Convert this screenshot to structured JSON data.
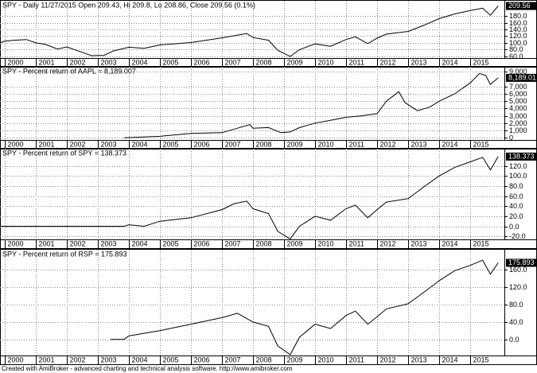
{
  "chart_data": [
    {
      "type": "line",
      "title": "SPY - Daily 11/27/2015 Open 209.43, Hi 209.8, Lo 208.86, Close 209.56 (0.1%)",
      "color": "#000000",
      "x": [
        1999.85,
        2000,
        2000.3,
        2000.7,
        2001,
        2001.3,
        2001.7,
        2002,
        2002.5,
        2002.8,
        2003.2,
        2003.5,
        2004,
        2004.5,
        2005,
        2006,
        2007,
        2007.8,
        2008,
        2008.5,
        2008.8,
        2009.2,
        2009.5,
        2010,
        2010.5,
        2011,
        2011.3,
        2011.7,
        2012,
        2012.3,
        2013,
        2013.5,
        2014,
        2014.5,
        2015,
        2015.4,
        2015.65,
        2015.9
      ],
      "values": [
        100,
        105,
        108,
        110,
        100,
        96,
        82,
        88,
        72,
        62,
        63,
        76,
        87,
        84,
        94,
        101,
        115,
        128,
        116,
        108,
        78,
        60,
        80,
        97,
        90,
        110,
        118,
        98,
        114,
        126,
        134,
        152,
        172,
        186,
        196,
        203,
        182,
        209.56
      ],
      "xlim": [
        1999.85,
        2016.1
      ],
      "xticks": [
        2000,
        2001,
        2002,
        2003,
        2004,
        2005,
        2006,
        2007,
        2008,
        2009,
        2010,
        2011,
        2012,
        2013,
        2014,
        2015
      ],
      "ylim": [
        55,
        225
      ],
      "yticks": [
        {
          "value": 180,
          "label": "180.0"
        },
        {
          "value": 160,
          "label": "160.0"
        },
        {
          "value": 140,
          "label": "140.0"
        },
        {
          "value": 120,
          "label": "120.0"
        },
        {
          "value": 100,
          "label": "100.0"
        },
        {
          "value": 80,
          "label": "80.0"
        },
        {
          "value": 60,
          "label": "60.0"
        }
      ],
      "grid": true
    },
    {
      "type": "line",
      "title": "SPY -  Percent return of AAPL = 8,189.007",
      "color": "#000000",
      "x": [
        2003.85,
        2004,
        2005,
        2006,
        2007,
        2007.9,
        2008,
        2008.5,
        2008.9,
        2009.2,
        2009.5,
        2010,
        2010.5,
        2011,
        2011.5,
        2012,
        2012.3,
        2012.7,
        2012.9,
        2013.3,
        2013.7,
        2014,
        2014.5,
        2015,
        2015.3,
        2015.5,
        2015.65,
        2015.9
      ],
      "values": [
        0,
        30,
        200,
        600,
        700,
        1800,
        1300,
        1400,
        700,
        800,
        1400,
        2000,
        2400,
        2800,
        3000,
        3300,
        5000,
        6300,
        4800,
        3700,
        4200,
        5000,
        6000,
        7500,
        8800,
        8500,
        7300,
        8189.007
      ],
      "value_labels": [
        null,
        null,
        null,
        null,
        null,
        null,
        null,
        null,
        null,
        null,
        null,
        null,
        null,
        null,
        null,
        null,
        null,
        null,
        null,
        null,
        null,
        null,
        null,
        null,
        null,
        null,
        null,
        "8,189.01"
      ],
      "xlim": [
        1999.85,
        2016.1
      ],
      "xticks": [
        2000,
        2001,
        2002,
        2003,
        2004,
        2005,
        2006,
        2007,
        2008,
        2009,
        2010,
        2011,
        2012,
        2013,
        2014,
        2015
      ],
      "ylim": [
        -300,
        9700
      ],
      "yticks": [
        {
          "value": 9000,
          "label": "9,000"
        },
        {
          "value": 7000,
          "label": "7,000"
        },
        {
          "value": 6000,
          "label": "6,000"
        },
        {
          "value": 5000,
          "label": "5,000"
        },
        {
          "value": 4000,
          "label": "4,000"
        },
        {
          "value": 3000,
          "label": "3,000"
        },
        {
          "value": 2000,
          "label": "2,000"
        },
        {
          "value": 1000,
          "label": "1,000"
        },
        0
      ],
      "grid": true
    },
    {
      "type": "line",
      "title": "SPY -  Percent return of SPY = 138.373",
      "color": "#000000",
      "x": [
        1999.85,
        2003.85,
        2004,
        2004.5,
        2005,
        2006,
        2007,
        2007.4,
        2007.8,
        2008,
        2008.5,
        2008.8,
        2009.2,
        2009.5,
        2010,
        2010.5,
        2011,
        2011.3,
        2011.7,
        2012,
        2012.3,
        2013,
        2013.5,
        2014,
        2014.5,
        2015,
        2015.4,
        2015.65,
        2015.9
      ],
      "values": [
        0,
        0,
        3,
        0,
        10,
        17,
        33,
        45,
        50,
        35,
        25,
        -10,
        -25,
        0,
        20,
        12,
        35,
        42,
        17,
        33,
        48,
        55,
        78,
        100,
        117,
        128,
        137,
        112,
        138.373
      ],
      "xlim": [
        1999.85,
        2016.1
      ],
      "xticks": [
        2000,
        2001,
        2002,
        2003,
        2004,
        2005,
        2006,
        2007,
        2008,
        2009,
        2010,
        2011,
        2012,
        2013,
        2014,
        2015
      ],
      "ylim": [
        -26,
        154
      ],
      "yticks": [
        {
          "value": 120,
          "label": "120.0"
        },
        {
          "value": 100,
          "label": "100.0"
        },
        {
          "value": 80,
          "label": "80.0"
        },
        {
          "value": 60,
          "label": "60.0"
        },
        {
          "value": 40,
          "label": "40.0"
        },
        {
          "value": 20,
          "label": "20.0"
        },
        {
          "value": 0,
          "label": "0.0"
        },
        {
          "value": -20,
          "label": "-20.0"
        }
      ],
      "grid": true
    },
    {
      "type": "line",
      "title": "SPY -  Percent return of RSP = 175.893",
      "color": "#000000",
      "x": [
        2003.4,
        2003.85,
        2004,
        2005,
        2006,
        2007,
        2007.5,
        2008,
        2008.5,
        2008.8,
        2009.2,
        2009.5,
        2010,
        2010.5,
        2011,
        2011.3,
        2011.7,
        2012,
        2012.3,
        2013,
        2013.5,
        2014,
        2014.5,
        2015,
        2015.4,
        2015.65,
        2015.9
      ],
      "values": [
        0,
        0,
        8,
        20,
        35,
        50,
        60,
        40,
        30,
        -15,
        -35,
        5,
        35,
        25,
        55,
        65,
        35,
        52,
        70,
        82,
        108,
        135,
        158,
        170,
        182,
        150,
        175.893
      ],
      "xlim": [
        1999.85,
        2016.1
      ],
      "xticks": [
        2000,
        2001,
        2002,
        2003,
        2004,
        2005,
        2006,
        2007,
        2008,
        2009,
        2010,
        2011,
        2012,
        2013,
        2014,
        2015
      ],
      "ylim": [
        -37,
        206
      ],
      "yticks": [
        {
          "value": 160,
          "label": "160.0"
        },
        {
          "value": 120,
          "label": "120.0"
        },
        {
          "value": 80,
          "label": "80.0"
        },
        {
          "value": 40,
          "label": "40.0"
        },
        {
          "value": 0,
          "label": "0.0"
        }
      ],
      "grid": true
    }
  ],
  "footer": "Created with AmiBroker - advanced charting and technical analysis software. http://www.amibroker.com"
}
